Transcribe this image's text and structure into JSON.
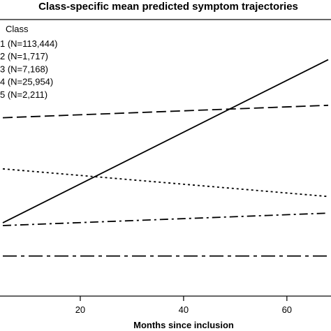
{
  "chart_data": {
    "type": "line",
    "title": "Class-specific mean predicted symptom trajectories",
    "xlabel": "Months since inclusion",
    "ylabel": "",
    "x_ticks": [
      20,
      40,
      60
    ],
    "xlim": [
      5,
      68
    ],
    "ylim": [
      0,
      1
    ],
    "grid": false,
    "legend": {
      "title": "Class",
      "placement": "top-left"
    },
    "series": [
      {
        "name": "1 (N=113,444)",
        "line_style": "solid",
        "x": [
          5,
          68
        ],
        "y": [
          0.265,
          0.855
        ]
      },
      {
        "name": "2 (N=1,717)",
        "line_style": "long-dash",
        "x": [
          5,
          68
        ],
        "y": [
          0.645,
          0.69
        ]
      },
      {
        "name": "3 (N=7,168)",
        "line_style": "dotted",
        "x": [
          5,
          68
        ],
        "y": [
          0.46,
          0.36
        ]
      },
      {
        "name": "4 (N=25,954)",
        "line_style": "dash-dot",
        "x": [
          5,
          68
        ],
        "y": [
          0.255,
          0.3
        ]
      },
      {
        "name": "5 (N=2,211)",
        "line_style": "long-dash-dot",
        "x": [
          5,
          68
        ],
        "y": [
          0.145,
          0.145
        ]
      }
    ]
  }
}
